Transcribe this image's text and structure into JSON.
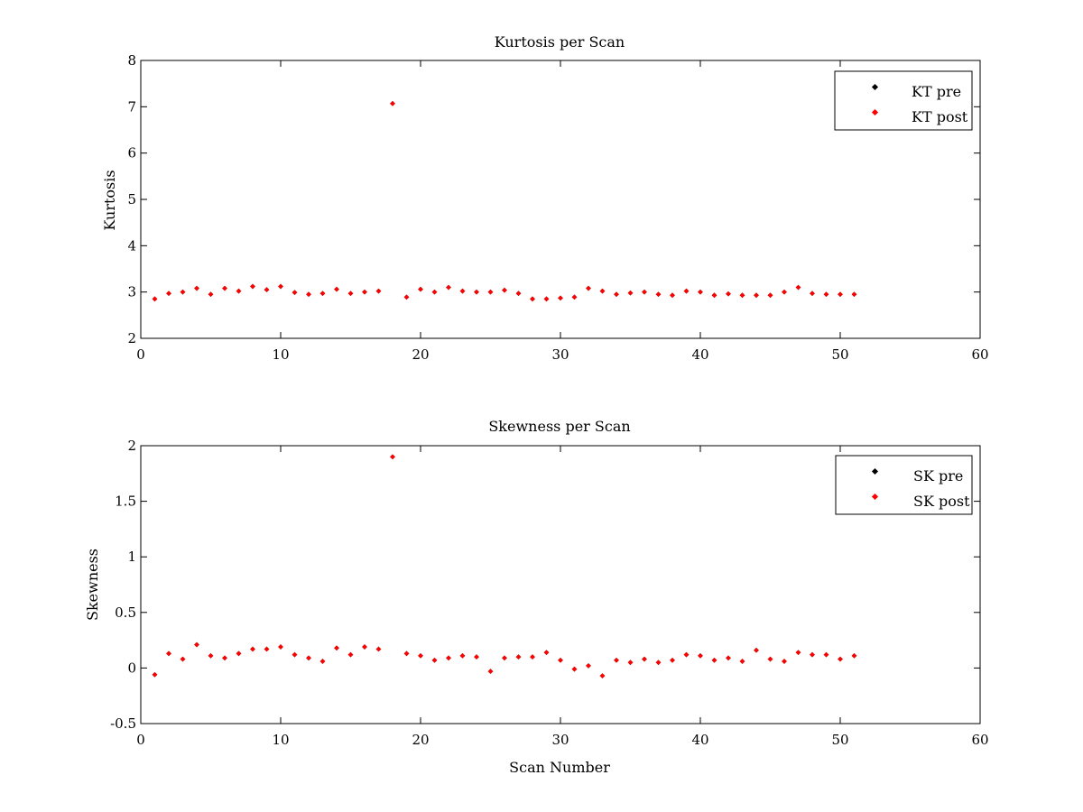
{
  "chart_data": [
    {
      "type": "scatter",
      "title": "Kurtosis per Scan",
      "xlabel": "",
      "ylabel": "Kurtosis",
      "xlim": [
        0,
        60
      ],
      "ylim": [
        2,
        8
      ],
      "xticks": [
        "0",
        "10",
        "20",
        "30",
        "40",
        "50",
        "60"
      ],
      "yticks": [
        "2",
        "3",
        "4",
        "5",
        "6",
        "7",
        "8"
      ],
      "grid": false,
      "legend_position": "top-right",
      "series": [
        {
          "name": "KT pre",
          "color": "#000000",
          "x": [
            1,
            2,
            3,
            4,
            5,
            6,
            7,
            8,
            9,
            10,
            11,
            12,
            13,
            14,
            15,
            16,
            17,
            18,
            19,
            20,
            21,
            22,
            23,
            24,
            25,
            26,
            27,
            28,
            29,
            30,
            31,
            32,
            33,
            34,
            35,
            36,
            37,
            38,
            39,
            40,
            41,
            42,
            43,
            44,
            45,
            46,
            47,
            48,
            49,
            50,
            51
          ],
          "y": [
            2.85,
            2.97,
            3.0,
            3.08,
            2.95,
            3.08,
            3.02,
            3.12,
            3.05,
            3.12,
            2.99,
            2.95,
            2.97,
            3.06,
            2.97,
            3.0,
            3.02,
            7.07,
            2.89,
            3.06,
            3.0,
            3.1,
            3.02,
            3.0,
            3.0,
            3.04,
            2.97,
            2.85,
            2.85,
            2.87,
            2.89,
            3.08,
            3.02,
            2.95,
            2.98,
            3.0,
            2.95,
            2.93,
            3.02,
            3.0,
            2.93,
            2.96,
            2.93,
            2.93,
            2.93,
            3.0,
            3.1,
            2.97,
            2.95,
            2.95,
            2.95
          ]
        },
        {
          "name": "KT post",
          "color": "#ff0000",
          "x": [
            1,
            2,
            3,
            4,
            5,
            6,
            7,
            8,
            9,
            10,
            11,
            12,
            13,
            14,
            15,
            16,
            17,
            18,
            19,
            20,
            21,
            22,
            23,
            24,
            25,
            26,
            27,
            28,
            29,
            30,
            31,
            32,
            33,
            34,
            35,
            36,
            37,
            38,
            39,
            40,
            41,
            42,
            43,
            44,
            45,
            46,
            47,
            48,
            49,
            50,
            51
          ],
          "y": [
            2.85,
            2.97,
            3.0,
            3.08,
            2.95,
            3.08,
            3.02,
            3.12,
            3.05,
            3.12,
            2.99,
            2.95,
            2.97,
            3.06,
            2.97,
            3.0,
            3.02,
            7.07,
            2.89,
            3.06,
            3.0,
            3.1,
            3.02,
            3.0,
            3.0,
            3.04,
            2.97,
            2.85,
            2.85,
            2.87,
            2.89,
            3.08,
            3.02,
            2.95,
            2.98,
            3.0,
            2.95,
            2.93,
            3.02,
            3.0,
            2.93,
            2.96,
            2.93,
            2.93,
            2.93,
            3.0,
            3.1,
            2.97,
            2.95,
            2.95,
            2.95
          ]
        }
      ]
    },
    {
      "type": "scatter",
      "title": "Skewness per Scan",
      "xlabel": "Scan Number",
      "ylabel": "Skewness",
      "xlim": [
        0,
        60
      ],
      "ylim": [
        -0.5,
        2
      ],
      "xticks": [
        "0",
        "10",
        "20",
        "30",
        "40",
        "50",
        "60"
      ],
      "yticks": [
        "-0.5",
        "0",
        "0.5",
        "1",
        "1.5",
        "2"
      ],
      "grid": false,
      "legend_position": "top-right",
      "series": [
        {
          "name": "SK pre",
          "color": "#000000",
          "x": [
            1,
            2,
            3,
            4,
            5,
            6,
            7,
            8,
            9,
            10,
            11,
            12,
            13,
            14,
            15,
            16,
            17,
            18,
            19,
            20,
            21,
            22,
            23,
            24,
            25,
            26,
            27,
            28,
            29,
            30,
            31,
            32,
            33,
            34,
            35,
            36,
            37,
            38,
            39,
            40,
            41,
            42,
            43,
            44,
            45,
            46,
            47,
            48,
            49,
            50,
            51
          ],
          "y": [
            -0.06,
            0.13,
            0.08,
            0.21,
            0.11,
            0.09,
            0.13,
            0.17,
            0.17,
            0.19,
            0.12,
            0.09,
            0.06,
            0.18,
            0.12,
            0.19,
            0.17,
            1.9,
            0.13,
            0.11,
            0.07,
            0.09,
            0.11,
            0.1,
            -0.03,
            0.09,
            0.1,
            0.1,
            0.14,
            0.07,
            -0.01,
            0.02,
            -0.07,
            0.07,
            0.05,
            0.08,
            0.05,
            0.07,
            0.12,
            0.11,
            0.07,
            0.09,
            0.06,
            0.16,
            0.08,
            0.06,
            0.14,
            0.12,
            0.12,
            0.08,
            0.11
          ]
        },
        {
          "name": "SK post",
          "color": "#ff0000",
          "x": [
            1,
            2,
            3,
            4,
            5,
            6,
            7,
            8,
            9,
            10,
            11,
            12,
            13,
            14,
            15,
            16,
            17,
            18,
            19,
            20,
            21,
            22,
            23,
            24,
            25,
            26,
            27,
            28,
            29,
            30,
            31,
            32,
            33,
            34,
            35,
            36,
            37,
            38,
            39,
            40,
            41,
            42,
            43,
            44,
            45,
            46,
            47,
            48,
            49,
            50,
            51
          ],
          "y": [
            -0.06,
            0.13,
            0.08,
            0.21,
            0.11,
            0.09,
            0.13,
            0.17,
            0.17,
            0.19,
            0.12,
            0.09,
            0.06,
            0.18,
            0.12,
            0.19,
            0.17,
            1.9,
            0.13,
            0.11,
            0.07,
            0.09,
            0.11,
            0.1,
            -0.03,
            0.09,
            0.1,
            0.1,
            0.14,
            0.07,
            -0.01,
            0.02,
            -0.07,
            0.07,
            0.05,
            0.08,
            0.05,
            0.07,
            0.12,
            0.11,
            0.07,
            0.09,
            0.06,
            0.16,
            0.08,
            0.06,
            0.14,
            0.12,
            0.12,
            0.08,
            0.11
          ]
        }
      ]
    }
  ]
}
